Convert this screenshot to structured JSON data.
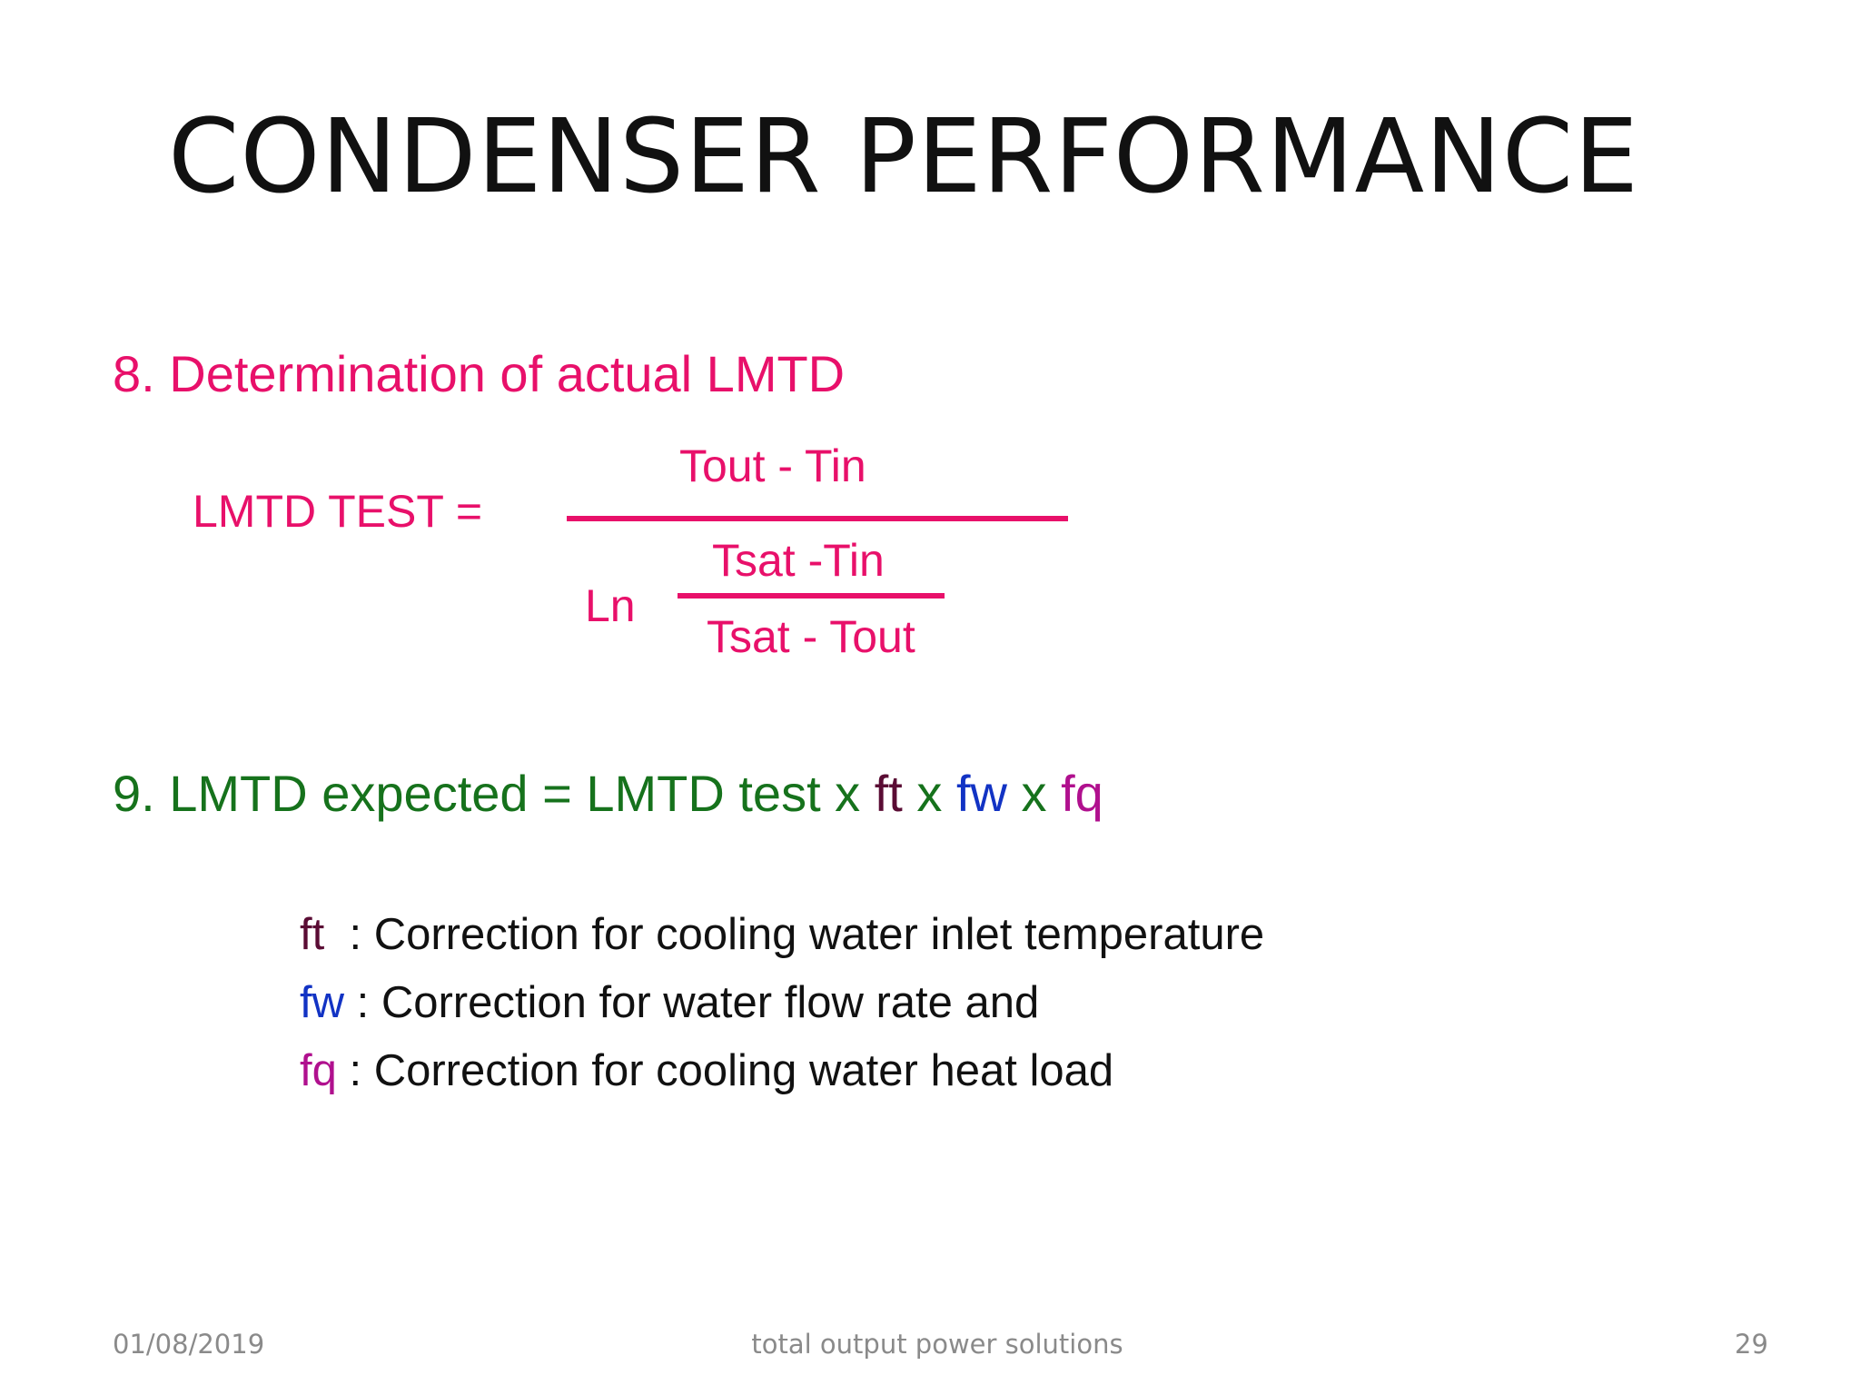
{
  "slide": {
    "title": "CONDENSER PERFORMANCE",
    "section8": {
      "heading": "8. Determination of actual LMTD",
      "formula": {
        "lhs": "LMTD TEST =",
        "numerator": "Tout - Tin",
        "ln_label": "Ln",
        "inner_numerator": "Tsat -Tin",
        "inner_denominator": "Tsat - Tout"
      }
    },
    "section9": {
      "heading_prefix": "9. LMTD expected = LMTD test x ",
      "ft": "ft",
      "x1": " x ",
      "fw": "fw",
      "x2": " x ",
      "fq": "fq"
    },
    "definitions": [
      {
        "symbol": "ft",
        "text": "  : Correction for cooling water inlet temperature"
      },
      {
        "symbol": "fw",
        "text": " : Correction for water flow rate and"
      },
      {
        "symbol": "fq",
        "text": " : Correction for cooling water heat load"
      }
    ],
    "footer": {
      "date": "01/08/2019",
      "center": "total output power solutions",
      "page_number": "29"
    },
    "colors": {
      "pink": "#e8106a",
      "green": "#16721c",
      "ft": "#5a0c34",
      "fw": "#1233c4",
      "fq": "#b0108e"
    }
  }
}
